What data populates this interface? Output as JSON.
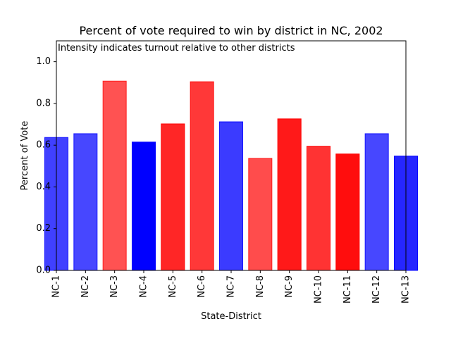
{
  "chart_data": {
    "type": "bar",
    "title": "Percent of vote required to win by district in NC, 2002",
    "annotation": "Intensity indicates turnout relative to other districts",
    "xlabel": "State-District",
    "ylabel": "Percent of Vote",
    "ylim": [
      0,
      1.1
    ],
    "yticks": [
      0.0,
      0.2,
      0.4,
      0.6,
      0.8,
      1.0
    ],
    "ytick_labels": [
      "0.0",
      "0.2",
      "0.4",
      "0.6",
      "0.8",
      "1.0"
    ],
    "grid": false,
    "categories": [
      "NC-1",
      "NC-2",
      "NC-3",
      "NC-4",
      "NC-5",
      "NC-6",
      "NC-7",
      "NC-8",
      "NC-9",
      "NC-10",
      "NC-11",
      "NC-12",
      "NC-13"
    ],
    "values": [
      0.637,
      0.655,
      0.907,
      0.615,
      0.702,
      0.904,
      0.712,
      0.537,
      0.726,
      0.595,
      0.558,
      0.655,
      0.548
    ],
    "party_colors": [
      "blue",
      "blue",
      "red",
      "blue",
      "red",
      "red",
      "blue",
      "red",
      "red",
      "red",
      "red",
      "blue",
      "blue"
    ],
    "intensity": [
      0.75,
      0.72,
      0.68,
      1.0,
      0.85,
      0.78,
      0.77,
      0.7,
      0.9,
      0.8,
      0.95,
      0.72,
      0.85
    ]
  }
}
